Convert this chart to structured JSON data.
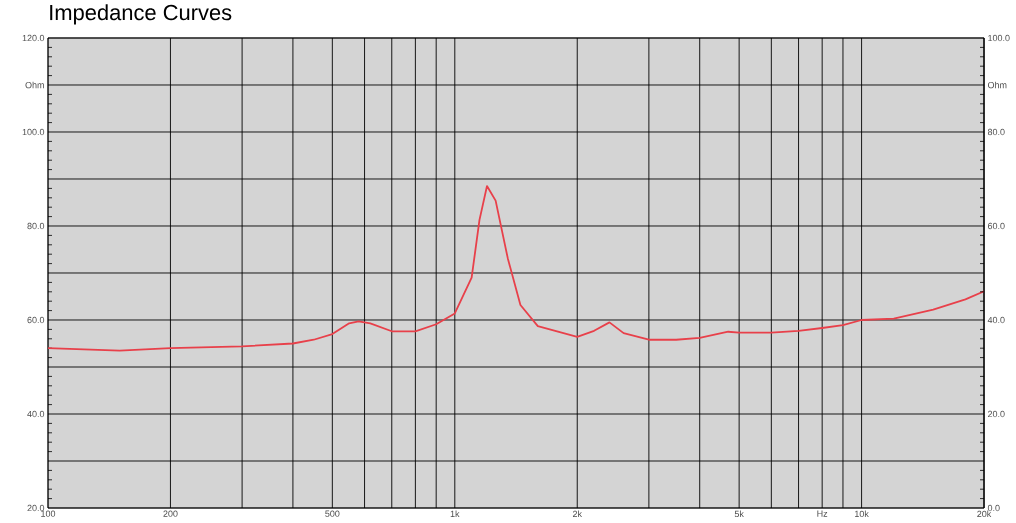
{
  "chart_data": {
    "type": "line",
    "title": "Impedance Curves",
    "x": [
      100,
      150,
      200,
      300,
      400,
      450,
      500,
      550,
      580,
      620,
      700,
      800,
      900,
      1000,
      1100,
      1150,
      1200,
      1260,
      1350,
      1450,
      1600,
      2000,
      2200,
      2400,
      2600,
      3000,
      3500,
      4000,
      4700,
      5000,
      6000,
      7000,
      8000,
      9000,
      10000,
      12000,
      15000,
      18000,
      20000
    ],
    "series": [
      {
        "color": "#e8404a",
        "values": [
          54.0,
          53.5,
          54.0,
          54.4,
          55.0,
          55.8,
          57.0,
          59.3,
          59.7,
          59.3,
          57.6,
          57.6,
          59.1,
          61.4,
          69.0,
          81.3,
          88.5,
          85.4,
          73.1,
          63.2,
          58.7,
          56.4,
          57.7,
          59.5,
          57.2,
          55.8,
          55.8,
          56.2,
          57.5,
          57.3,
          57.3,
          57.7,
          58.3,
          58.9,
          60.0,
          60.3,
          62.2,
          64.4,
          66.1
        ]
      }
    ],
    "log": "x",
    "grid": true,
    "xlim": [
      100,
      20000
    ],
    "xticks": [
      {
        "value": 100,
        "label": "100"
      },
      {
        "value": 200,
        "label": "200"
      },
      {
        "value": 300,
        "label": null
      },
      {
        "value": 400,
        "label": null
      },
      {
        "value": 500,
        "label": "500"
      },
      {
        "value": 600,
        "label": null
      },
      {
        "value": 700,
        "label": null
      },
      {
        "value": 800,
        "label": null
      },
      {
        "value": 900,
        "label": null
      },
      {
        "value": 1000,
        "label": "1k"
      },
      {
        "value": 2000,
        "label": "2k"
      },
      {
        "value": 3000,
        "label": null
      },
      {
        "value": 4000,
        "label": null
      },
      {
        "value": 5000,
        "label": "5k"
      },
      {
        "value": 6000,
        "label": null
      },
      {
        "value": 7000,
        "label": null
      },
      {
        "value": 8000,
        "label": "Hz"
      },
      {
        "value": 9000,
        "label": null
      },
      {
        "value": 10000,
        "label": "10k"
      },
      {
        "value": 20000,
        "label": "20k"
      }
    ],
    "ylim": [
      20,
      120
    ],
    "yticks": [
      {
        "value": 20,
        "label": "20.0"
      },
      {
        "value": 30,
        "label": null
      },
      {
        "value": 40,
        "label": "40.0"
      },
      {
        "value": 50,
        "label": null
      },
      {
        "value": 60,
        "label": "60.0"
      },
      {
        "value": 70,
        "label": null
      },
      {
        "value": 80,
        "label": "80.0"
      },
      {
        "value": 90,
        "label": null
      },
      {
        "value": 100,
        "label": "100.0"
      },
      {
        "value": 110,
        "label": "Ohm"
      },
      {
        "value": 120,
        "label": "120.0"
      }
    ],
    "y2lim": [
      0,
      100
    ],
    "y2ticks": [
      {
        "value": 0,
        "label": "0.0"
      },
      {
        "value": 10,
        "label": null
      },
      {
        "value": 20,
        "label": "20.0"
      },
      {
        "value": 30,
        "label": null
      },
      {
        "value": 40,
        "label": "40.0"
      },
      {
        "value": 50,
        "label": null
      },
      {
        "value": 60,
        "label": "60.0"
      },
      {
        "value": 70,
        "label": null
      },
      {
        "value": 80,
        "label": "80.0"
      },
      {
        "value": 90,
        "label": "Ohm"
      },
      {
        "value": 100,
        "label": "100.0"
      }
    ]
  }
}
